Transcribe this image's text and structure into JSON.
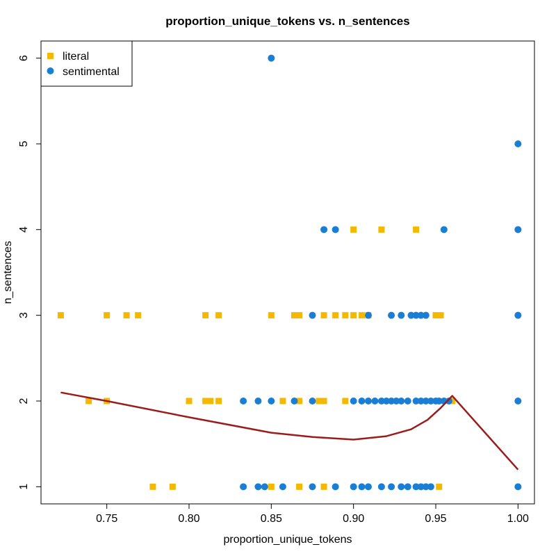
{
  "chart_data": {
    "type": "scatter",
    "title": "proportion_unique_tokens vs. n_sentences",
    "xlabel": "proportion_unique_tokens",
    "ylabel": "n_sentences",
    "xlim": [
      0.71,
      1.01
    ],
    "ylim": [
      0.8,
      6.2
    ],
    "x_ticks": [
      "0.75",
      "0.80",
      "0.85",
      "0.90",
      "0.95",
      "1.00"
    ],
    "y_ticks": [
      "1",
      "2",
      "3",
      "4",
      "5",
      "6"
    ],
    "grid": false,
    "legend_position": "top-left",
    "series": [
      {
        "name": "literal",
        "marker": "square",
        "color": "#f5b800",
        "points": [
          [
            0.722,
            3
          ],
          [
            0.75,
            3
          ],
          [
            0.762,
            3
          ],
          [
            0.769,
            3
          ],
          [
            0.81,
            3
          ],
          [
            0.818,
            3
          ],
          [
            0.85,
            3
          ],
          [
            0.864,
            3
          ],
          [
            0.867,
            3
          ],
          [
            0.882,
            3
          ],
          [
            0.889,
            3
          ],
          [
            0.895,
            3
          ],
          [
            0.9,
            3
          ],
          [
            0.905,
            3
          ],
          [
            0.909,
            3
          ],
          [
            0.95,
            3
          ],
          [
            0.953,
            3
          ],
          [
            0.9,
            4
          ],
          [
            0.917,
            4
          ],
          [
            0.938,
            4
          ],
          [
            0.739,
            2
          ],
          [
            0.75,
            2
          ],
          [
            0.8,
            2
          ],
          [
            0.81,
            2
          ],
          [
            0.813,
            2
          ],
          [
            0.818,
            2
          ],
          [
            0.857,
            2
          ],
          [
            0.867,
            2
          ],
          [
            0.879,
            2
          ],
          [
            0.882,
            2
          ],
          [
            0.895,
            2
          ],
          [
            0.96,
            2
          ],
          [
            0.778,
            1
          ],
          [
            0.79,
            1
          ],
          [
            0.85,
            1
          ],
          [
            0.867,
            1
          ],
          [
            0.882,
            1
          ],
          [
            0.952,
            1
          ]
        ]
      },
      {
        "name": "sentimental",
        "marker": "circle",
        "color": "#1a7fd4",
        "points": [
          [
            0.85,
            6
          ],
          [
            1.0,
            5
          ],
          [
            0.882,
            4
          ],
          [
            0.889,
            4
          ],
          [
            0.955,
            4
          ],
          [
            1.0,
            4
          ],
          [
            0.875,
            3
          ],
          [
            0.909,
            3
          ],
          [
            0.923,
            3
          ],
          [
            0.929,
            3
          ],
          [
            0.935,
            3
          ],
          [
            0.938,
            3
          ],
          [
            0.941,
            3
          ],
          [
            0.944,
            3
          ],
          [
            1.0,
            3
          ],
          [
            0.833,
            2
          ],
          [
            0.842,
            2
          ],
          [
            0.85,
            2
          ],
          [
            0.864,
            2
          ],
          [
            0.875,
            2
          ],
          [
            0.9,
            2
          ],
          [
            0.905,
            2
          ],
          [
            0.909,
            2
          ],
          [
            0.913,
            2
          ],
          [
            0.917,
            2
          ],
          [
            0.92,
            2
          ],
          [
            0.923,
            2
          ],
          [
            0.926,
            2
          ],
          [
            0.929,
            2
          ],
          [
            0.933,
            2
          ],
          [
            0.938,
            2
          ],
          [
            0.941,
            2
          ],
          [
            0.944,
            2
          ],
          [
            0.947,
            2
          ],
          [
            0.95,
            2
          ],
          [
            0.952,
            2
          ],
          [
            0.955,
            2
          ],
          [
            0.958,
            2
          ],
          [
            1.0,
            2
          ],
          [
            0.833,
            1
          ],
          [
            0.842,
            1
          ],
          [
            0.846,
            1
          ],
          [
            0.857,
            1
          ],
          [
            0.875,
            1
          ],
          [
            0.889,
            1
          ],
          [
            0.9,
            1
          ],
          [
            0.905,
            1
          ],
          [
            0.909,
            1
          ],
          [
            0.917,
            1
          ],
          [
            0.923,
            1
          ],
          [
            0.929,
            1
          ],
          [
            0.933,
            1
          ],
          [
            0.938,
            1
          ],
          [
            0.941,
            1
          ],
          [
            0.944,
            1
          ],
          [
            0.947,
            1
          ],
          [
            1.0,
            1
          ]
        ]
      }
    ],
    "trend_line": {
      "color": "#9b1c1c",
      "points": [
        [
          0.722,
          2.1
        ],
        [
          0.75,
          2.0
        ],
        [
          0.8,
          1.81
        ],
        [
          0.85,
          1.63
        ],
        [
          0.875,
          1.58
        ],
        [
          0.9,
          1.55
        ],
        [
          0.92,
          1.59
        ],
        [
          0.935,
          1.67
        ],
        [
          0.945,
          1.78
        ],
        [
          0.953,
          1.92
        ],
        [
          0.96,
          2.06
        ],
        [
          1.0,
          1.2
        ]
      ]
    }
  }
}
